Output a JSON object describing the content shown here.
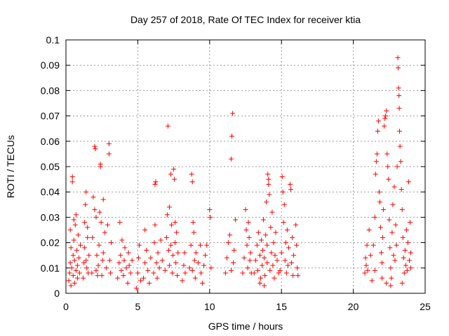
{
  "chart_data": {
    "type": "scatter",
    "title": "Day 257 of 2018, Rate Of TEC Index for receiver ktia",
    "xlabel": "GPS time / hours",
    "ylabel": "ROTI / TECUs",
    "xlim": [
      0,
      25
    ],
    "ylim": [
      0,
      0.1
    ],
    "xticks": [
      0,
      5,
      10,
      15,
      20,
      25
    ],
    "xtick_labels": [
      "0",
      "5",
      "10",
      "15",
      "20",
      "25"
    ],
    "yticks": [
      0,
      0.01,
      0.02,
      0.03,
      0.04,
      0.05,
      0.06,
      0.07,
      0.08,
      0.09,
      0.1
    ],
    "ytick_labels": [
      "0",
      "0.01",
      "0.02",
      "0.03",
      "0.04",
      "0.05",
      "0.06",
      "0.07",
      "0.08",
      "0.09",
      "0.1"
    ],
    "grid": true,
    "legend": "none",
    "marker": "+",
    "marker_color": "#ff0000",
    "series": [
      {
        "name": "ROTI",
        "points": [
          [
            0.2,
            0.005
          ],
          [
            0.25,
            0.008
          ],
          [
            0.3,
            0.012
          ],
          [
            0.3,
            0.025
          ],
          [
            0.35,
            0.018
          ],
          [
            0.4,
            0.01
          ],
          [
            0.45,
            0.046
          ],
          [
            0.45,
            0.044
          ],
          [
            0.5,
            0.007
          ],
          [
            0.5,
            0.015
          ],
          [
            0.55,
            0.021
          ],
          [
            0.6,
            0.004
          ],
          [
            0.6,
            0.013
          ],
          [
            0.65,
            0.027
          ],
          [
            0.7,
            0.009
          ],
          [
            0.7,
            0.031
          ],
          [
            0.75,
            0.017
          ],
          [
            0.8,
            0.006
          ],
          [
            0.8,
            0.011
          ],
          [
            0.85,
            0.023
          ],
          [
            0.9,
            0.014
          ],
          [
            0.95,
            0.008
          ],
          [
            1.0,
            0.019
          ],
          [
            0.35,
            0.003
          ],
          [
            0.55,
            0.029
          ],
          [
            1.2,
            0.006
          ],
          [
            1.25,
            0.012
          ],
          [
            1.3,
            0.018
          ],
          [
            1.3,
            0.028
          ],
          [
            1.35,
            0.035
          ],
          [
            1.4,
            0.04
          ],
          [
            1.45,
            0.01
          ],
          [
            1.5,
            0.022
          ],
          [
            1.55,
            0.008
          ],
          [
            1.6,
            0.015
          ],
          [
            1.5,
            0.026
          ],
          [
            1.4,
            0.013
          ],
          [
            1.8,
            0.008
          ],
          [
            1.85,
            0.022
          ],
          [
            1.9,
            0.038
          ],
          [
            2.0,
            0.033
          ],
          [
            2.0,
            0.058
          ],
          [
            2.05,
            0.057
          ],
          [
            2.1,
            0.03
          ],
          [
            2.1,
            0.009
          ],
          [
            2.15,
            0.015
          ],
          [
            2.2,
            0.007
          ],
          [
            2.25,
            0.011
          ],
          [
            2.3,
            0.019
          ],
          [
            2.35,
            0.032
          ],
          [
            2.4,
            0.051
          ],
          [
            2.4,
            0.05
          ],
          [
            2.45,
            0.028
          ],
          [
            2.5,
            0.007
          ],
          [
            2.55,
            0.013
          ],
          [
            2.6,
            0.037
          ],
          [
            2.6,
            0.016
          ],
          [
            2.7,
            0.024
          ],
          [
            2.8,
            0.01
          ],
          [
            2.9,
            0.027
          ],
          [
            3.0,
            0.059
          ],
          [
            3.0,
            0.055
          ],
          [
            3.05,
            0.013
          ],
          [
            3.1,
            0.008
          ],
          [
            3.15,
            0.02
          ],
          [
            3.6,
            0.006
          ],
          [
            3.7,
            0.012
          ],
          [
            3.75,
            0.028
          ],
          [
            3.8,
            0.015
          ],
          [
            3.85,
            0.009
          ],
          [
            3.9,
            0.021
          ],
          [
            4.0,
            0.007
          ],
          [
            4.05,
            0.013
          ],
          [
            4.1,
            0.018
          ],
          [
            4.2,
            0.01
          ],
          [
            4.3,
            0.004
          ],
          [
            4.35,
            0.016
          ],
          [
            4.4,
            0.011
          ],
          [
            4.5,
            0.008
          ],
          [
            4.6,
            0.013
          ],
          [
            4.9,
            0.002
          ],
          [
            5.0,
            0.008
          ],
          [
            5.05,
            0.014
          ],
          [
            5.1,
            0.019
          ],
          [
            5.2,
            0.005
          ],
          [
            5.4,
            0.006
          ],
          [
            5.5,
            0.012
          ],
          [
            5.5,
            0.025
          ],
          [
            5.6,
            0.017
          ],
          [
            5.7,
            0.009
          ],
          [
            5.8,
            0.004
          ],
          [
            5.9,
            0.014
          ],
          [
            6.1,
            0.008
          ],
          [
            6.15,
            0.02
          ],
          [
            6.2,
            0.027
          ],
          [
            6.2,
            0.043
          ],
          [
            6.25,
            0.044
          ],
          [
            6.3,
            0.012
          ],
          [
            6.35,
            0.006
          ],
          [
            6.4,
            0.016
          ],
          [
            6.5,
            0.01
          ],
          [
            6.6,
            0.021
          ],
          [
            6.7,
            0.013
          ],
          [
            6.9,
            0.009
          ],
          [
            7.0,
            0.022
          ],
          [
            7.05,
            0.031
          ],
          [
            7.1,
            0.066
          ],
          [
            7.15,
            0.017
          ],
          [
            7.2,
            0.034
          ],
          [
            7.2,
            0.011
          ],
          [
            7.3,
            0.047
          ],
          [
            7.35,
            0.027
          ],
          [
            7.4,
            0.008
          ],
          [
            7.45,
            0.015
          ],
          [
            7.5,
            0.049
          ],
          [
            7.55,
            0.045
          ],
          [
            7.6,
            0.02
          ],
          [
            7.65,
            0.012
          ],
          [
            7.7,
            0.024
          ],
          [
            7.75,
            0.007
          ],
          [
            7.8,
            0.016
          ],
          [
            7.3,
            0.019
          ],
          [
            7.6,
            0.028
          ],
          [
            8.1,
            0.005
          ],
          [
            8.2,
            0.011
          ],
          [
            8.25,
            0.016
          ],
          [
            8.3,
            0.008
          ],
          [
            8.6,
            0.01
          ],
          [
            8.7,
            0.019
          ],
          [
            8.75,
            0.047
          ],
          [
            8.8,
            0.044
          ],
          [
            8.85,
            0.028
          ],
          [
            8.9,
            0.024
          ],
          [
            8.95,
            0.013
          ],
          [
            9.0,
            0.006
          ],
          [
            9.05,
            0.016
          ],
          [
            8.8,
            0.009
          ],
          [
            9.2,
            0.012
          ],
          [
            9.35,
            0.019
          ],
          [
            9.4,
            0.008
          ],
          [
            9.5,
            0.004
          ],
          [
            9.6,
            0.011
          ],
          [
            9.7,
            0.015
          ],
          [
            9.8,
            0.019
          ],
          [
            10.0,
            0.033
          ],
          [
            10.05,
            0.03
          ],
          [
            10.1,
            0.01
          ],
          [
            11.1,
            0.008
          ],
          [
            11.2,
            0.014
          ],
          [
            11.3,
            0.02
          ],
          [
            11.4,
            0.023
          ],
          [
            11.5,
            0.053
          ],
          [
            11.55,
            0.062
          ],
          [
            11.6,
            0.071
          ],
          [
            11.65,
            0.012
          ],
          [
            11.7,
            0.017
          ],
          [
            11.8,
            0.029
          ],
          [
            11.5,
            0.009
          ],
          [
            12.3,
            0.008
          ],
          [
            12.4,
            0.014
          ],
          [
            12.5,
            0.033
          ],
          [
            12.55,
            0.025
          ],
          [
            12.6,
            0.019
          ],
          [
            12.65,
            0.01
          ],
          [
            12.7,
            0.028
          ],
          [
            12.75,
            0.022
          ],
          [
            12.8,
            0.013
          ],
          [
            12.85,
            0.016
          ],
          [
            12.9,
            0.008
          ],
          [
            13.1,
            0.008
          ],
          [
            13.2,
            0.013
          ],
          [
            13.3,
            0.019
          ],
          [
            13.35,
            0.009
          ],
          [
            13.4,
            0.024
          ],
          [
            13.5,
            0.015
          ],
          [
            13.55,
            0.006
          ],
          [
            13.6,
            0.021
          ],
          [
            13.65,
            0.011
          ],
          [
            13.7,
            0.017
          ],
          [
            13.75,
            0.029
          ],
          [
            13.8,
            0.014
          ],
          [
            13.85,
            0.007
          ],
          [
            13.9,
            0.023
          ],
          [
            13.95,
            0.036
          ],
          [
            14.0,
            0.019
          ],
          [
            14.0,
            0.012
          ],
          [
            14.05,
            0.047
          ],
          [
            14.1,
            0.045
          ],
          [
            14.1,
            0.043
          ],
          [
            14.15,
            0.039
          ],
          [
            14.2,
            0.009
          ],
          [
            14.25,
            0.026
          ],
          [
            14.3,
            0.016
          ],
          [
            14.35,
            0.032
          ],
          [
            14.4,
            0.011
          ],
          [
            14.45,
            0.02
          ],
          [
            14.5,
            0.006
          ],
          [
            14.55,
            0.015
          ],
          [
            14.6,
            0.024
          ],
          [
            14.7,
            0.013
          ],
          [
            14.8,
            0.008
          ],
          [
            13.5,
            0.004
          ],
          [
            13.8,
            0.003
          ],
          [
            14.9,
            0.009
          ],
          [
            15.0,
            0.016
          ],
          [
            15.05,
            0.046
          ],
          [
            15.1,
            0.04
          ],
          [
            15.15,
            0.028
          ],
          [
            15.2,
            0.035
          ],
          [
            15.25,
            0.013
          ],
          [
            15.3,
            0.02
          ],
          [
            15.35,
            0.008
          ],
          [
            15.4,
            0.025
          ],
          [
            15.45,
            0.011
          ],
          [
            15.5,
            0.018
          ],
          [
            15.6,
            0.043
          ],
          [
            15.65,
            0.041
          ],
          [
            15.7,
            0.012
          ],
          [
            15.75,
            0.022
          ],
          [
            15.8,
            0.007
          ],
          [
            15.85,
            0.015
          ],
          [
            16.0,
            0.027
          ],
          [
            16.05,
            0.019
          ],
          [
            16.1,
            0.01
          ],
          [
            16.15,
            0.007
          ],
          [
            20.8,
            0.008
          ],
          [
            20.85,
            0.014
          ],
          [
            20.9,
            0.011
          ],
          [
            20.95,
            0.019
          ],
          [
            21.0,
            0.009
          ],
          [
            21.1,
            0.025
          ],
          [
            21.2,
            0.015
          ],
          [
            21.4,
            0.019
          ],
          [
            21.5,
            0.03
          ],
          [
            21.5,
            0.009
          ],
          [
            21.55,
            0.047
          ],
          [
            21.6,
            0.052
          ],
          [
            21.65,
            0.055
          ],
          [
            21.7,
            0.064
          ],
          [
            21.75,
            0.068
          ],
          [
            21.8,
            0.04
          ],
          [
            21.85,
            0.036
          ],
          [
            21.9,
            0.026
          ],
          [
            21.95,
            0.016
          ],
          [
            22.0,
            0.012
          ],
          [
            22.05,
            0.022
          ],
          [
            22.1,
            0.033
          ],
          [
            22.15,
            0.066
          ],
          [
            22.2,
            0.069
          ],
          [
            22.25,
            0.07
          ],
          [
            22.3,
            0.072
          ],
          [
            22.35,
            0.055
          ],
          [
            22.4,
            0.05
          ],
          [
            22.45,
            0.045
          ],
          [
            22.5,
            0.029
          ],
          [
            22.55,
            0.018
          ],
          [
            22.6,
            0.01
          ],
          [
            22.65,
            0.006
          ],
          [
            22.7,
            0.024
          ],
          [
            22.75,
            0.035
          ],
          [
            22.8,
            0.015
          ],
          [
            22.85,
            0.042
          ],
          [
            22.9,
            0.013
          ],
          [
            22.95,
            0.027
          ],
          [
            23.0,
            0.019
          ],
          [
            23.05,
            0.05
          ],
          [
            23.1,
            0.093
          ],
          [
            23.12,
            0.089
          ],
          [
            23.15,
            0.081
          ],
          [
            23.18,
            0.078
          ],
          [
            23.2,
            0.073
          ],
          [
            23.22,
            0.064
          ],
          [
            23.25,
            0.058
          ],
          [
            23.3,
            0.052
          ],
          [
            23.35,
            0.041
          ],
          [
            23.4,
            0.033
          ],
          [
            23.45,
            0.022
          ],
          [
            23.5,
            0.014
          ],
          [
            23.55,
            0.008
          ],
          [
            23.6,
            0.017
          ],
          [
            23.65,
            0.011
          ],
          [
            23.7,
            0.025
          ],
          [
            23.75,
            0.009
          ],
          [
            23.8,
            0.02
          ],
          [
            23.85,
            0.044
          ],
          [
            23.9,
            0.013
          ],
          [
            23.95,
            0.028
          ],
          [
            24.0,
            0.01
          ],
          [
            24.0,
            0.016
          ],
          [
            22.0,
            0.006
          ],
          [
            22.3,
            0.004
          ],
          [
            22.6,
            0.003
          ],
          [
            21.3,
            0.005
          ],
          [
            23.4,
            0.004
          ]
        ]
      }
    ]
  }
}
